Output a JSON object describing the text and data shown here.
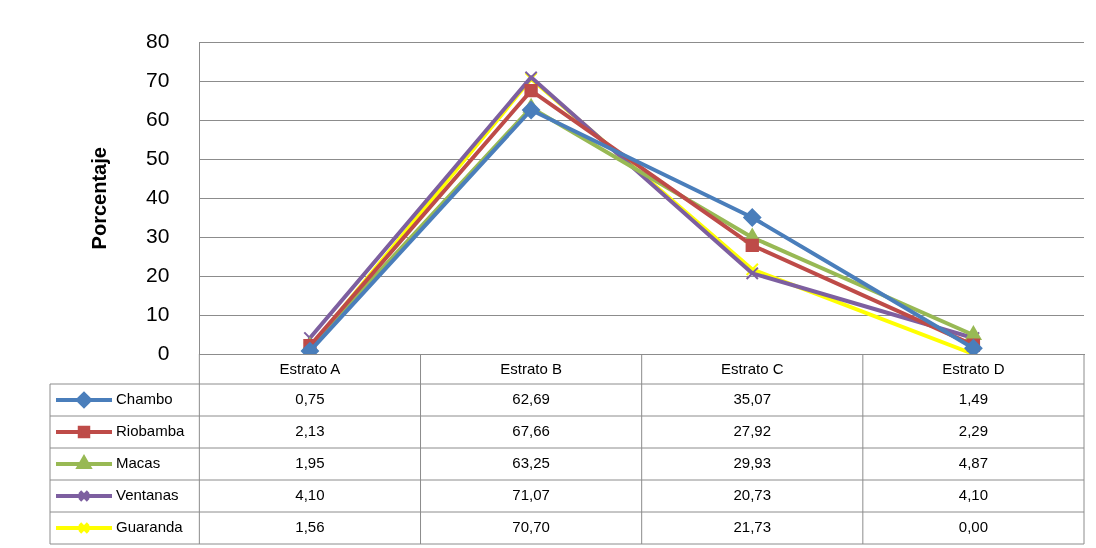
{
  "chart_data": {
    "type": "line",
    "ylabel": "Porcentaje",
    "categories": [
      "Estrato A",
      "Estrato B",
      "Estrato C",
      "Estrato D"
    ],
    "ylim": [
      0,
      80
    ],
    "yticks": [
      0,
      10,
      20,
      30,
      40,
      50,
      60,
      70,
      80
    ],
    "grid": "y",
    "legend": "bottom",
    "line_style": "solid",
    "series": [
      {
        "name": "Chambo",
        "color": "#4a7ebb",
        "marker": "diamond",
        "values": [
          0.75,
          62.69,
          35.07,
          1.49
        ],
        "value_labels": [
          "0,75",
          "62,69",
          "35,07",
          "1,49"
        ]
      },
      {
        "name": "Riobamba",
        "color": "#be4b48",
        "marker": "square",
        "values": [
          2.13,
          67.66,
          27.92,
          2.29
        ],
        "value_labels": [
          "2,13",
          "67,66",
          "27,92",
          "2,29"
        ]
      },
      {
        "name": "Macas",
        "color": "#98b954",
        "marker": "triangle",
        "values": [
          1.95,
          63.25,
          29.93,
          4.87
        ],
        "value_labels": [
          "1,95",
          "63,25",
          "29,93",
          "4,87"
        ]
      },
      {
        "name": "Ventanas",
        "color": "#7d5fa0",
        "marker": "cross",
        "values": [
          4.1,
          71.07,
          20.73,
          4.1
        ],
        "value_labels": [
          "4,10",
          "71,07",
          "20,73",
          "4,10"
        ]
      },
      {
        "name": "Guaranda",
        "color": "#ffff00",
        "marker": "cross",
        "values": [
          1.56,
          70.7,
          21.73,
          0.0
        ],
        "value_labels": [
          "1,56",
          "70,70",
          "21,73",
          "0,00"
        ]
      }
    ]
  }
}
